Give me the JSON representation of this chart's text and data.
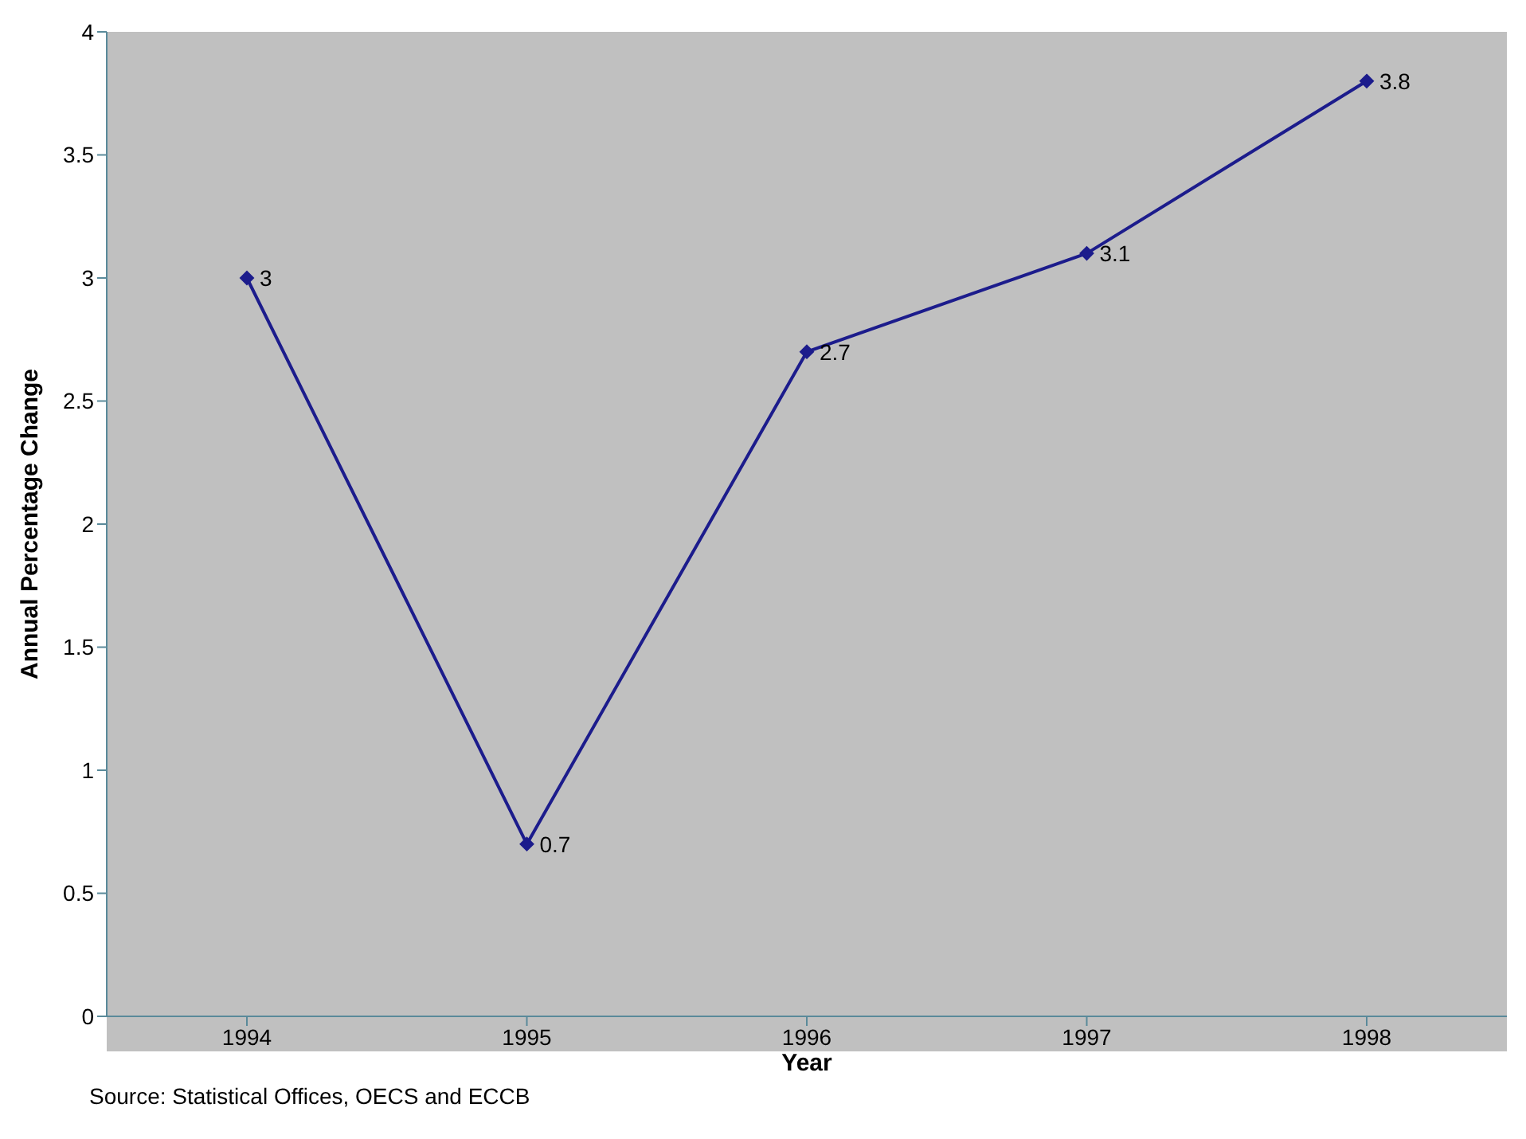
{
  "chart_data": {
    "type": "line",
    "xlabel": "Year",
    "ylabel": "Annual Percentage Change",
    "categories": [
      "1994",
      "1995",
      "1996",
      "1997",
      "1998"
    ],
    "series": [
      {
        "color": "#1c1c8c",
        "values": [
          3,
          0.7,
          2.7,
          3.1,
          3.8
        ]
      }
    ],
    "ylim": [
      0,
      4
    ],
    "yticks": [
      0,
      0.5,
      1,
      1.5,
      2,
      2.5,
      3,
      3.5,
      4
    ],
    "data_labels": true,
    "marker": "diamond",
    "grid": false,
    "legend": false,
    "annotations": [
      "Source: Statistical Offices, OECS and ECCB"
    ]
  }
}
